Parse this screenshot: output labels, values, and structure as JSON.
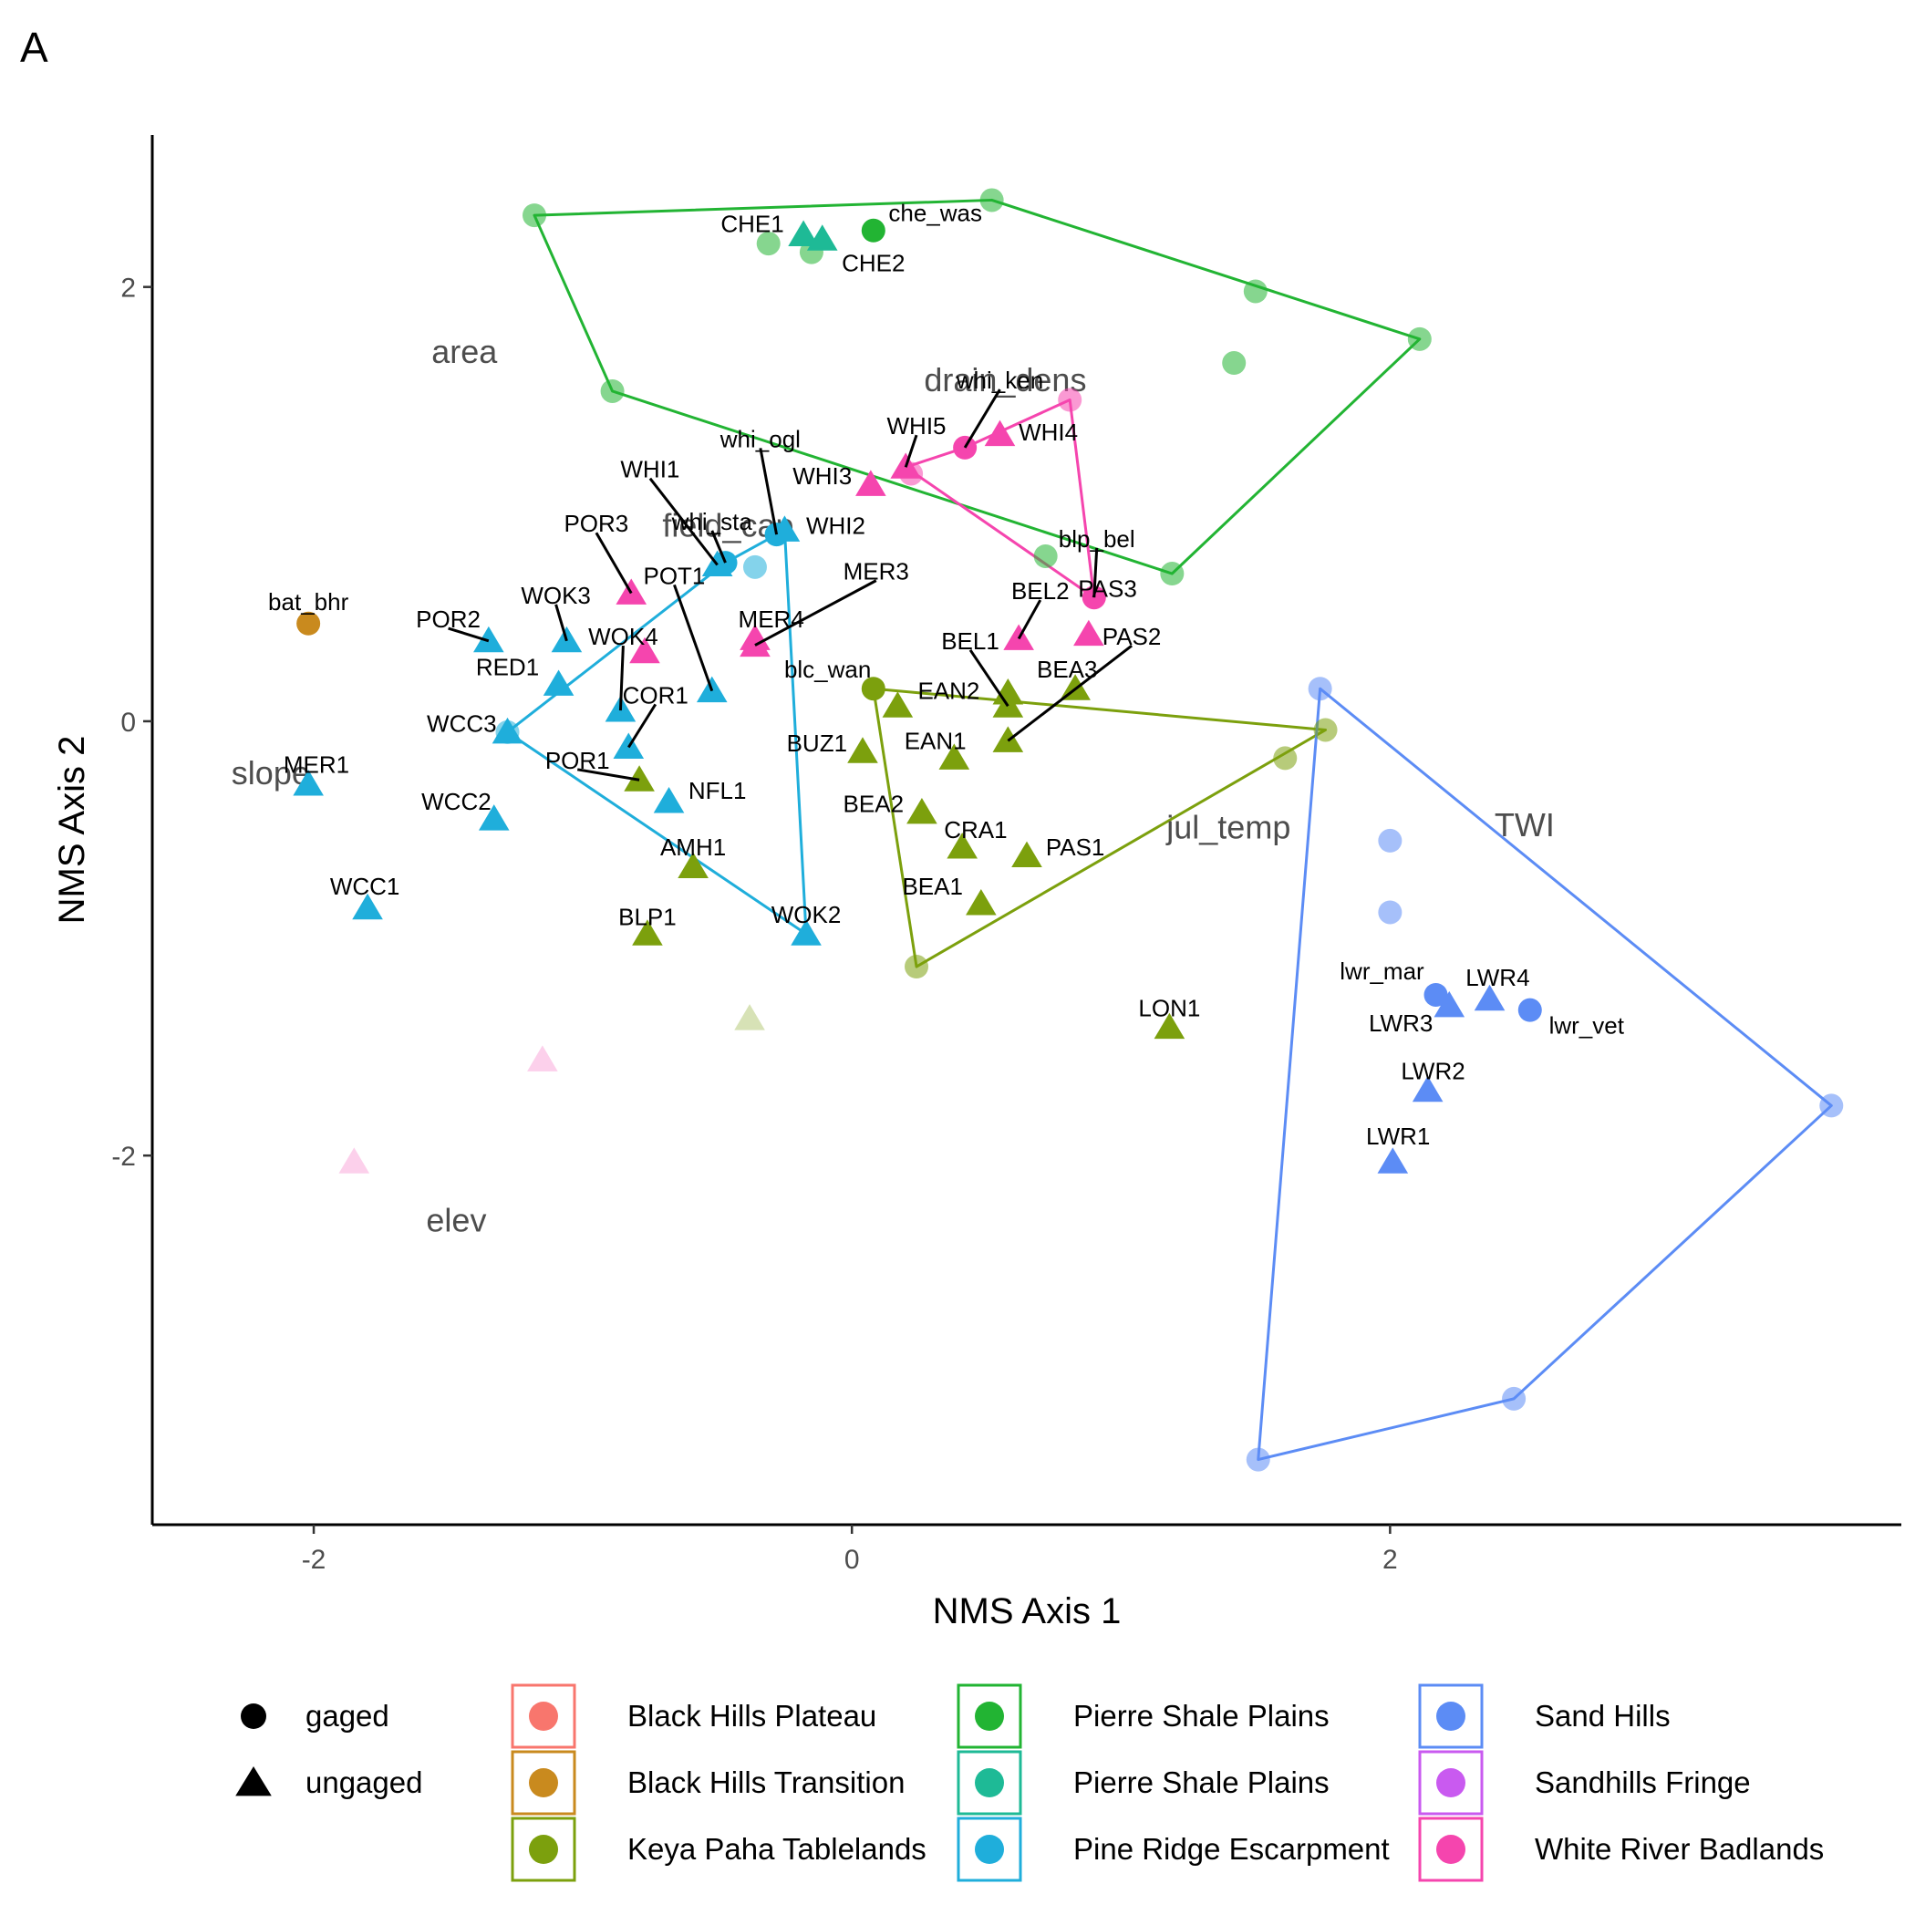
{
  "panel_label": "A",
  "colors": {
    "Black Hills Plateau": "#F8766D",
    "Black Hills Transition": "#C98A1E",
    "Keya Paha Tablelands": "#7CA00D",
    "Pierre Shale Plains 1": "#22B433",
    "Pierre Shale Plains 2": "#1EBA96",
    "Pine Ridge Escarpment": "#1FAEDB",
    "Sand Hills": "#5C8CF5",
    "Sandhills Fringe": "#C95AF0",
    "White River Badlands": "#F545AE"
  },
  "chart_data": {
    "type": "scatter",
    "title": "",
    "xlabel": "NMS Axis 1",
    "ylabel": "NMS Axis 2",
    "xlim": [
      -2.6,
      3.9
    ],
    "ylim": [
      -3.7,
      2.7
    ],
    "xticks": [
      -2,
      0,
      2
    ],
    "yticks": [
      -2,
      0,
      2
    ],
    "shapes": {
      "gaged": "circle",
      "ungaged": "triangle"
    },
    "vectors": [
      {
        "label": "area",
        "x": -1.44,
        "y": 1.7
      },
      {
        "label": "drain_dens",
        "x": 0.57,
        "y": 1.57
      },
      {
        "label": "field_cap",
        "x": -0.46,
        "y": 0.9
      },
      {
        "label": "slope",
        "x": -2.16,
        "y": -0.24
      },
      {
        "label": "elev",
        "x": -1.47,
        "y": -2.3
      },
      {
        "label": "jul_temp",
        "x": 1.4,
        "y": -0.49
      },
      {
        "label": "TWI",
        "x": 2.5,
        "y": -0.48
      }
    ],
    "points": [
      {
        "x": -2.02,
        "y": 0.45,
        "label": "bat_bhr",
        "group": "Black Hills Transition",
        "type": "gaged",
        "alpha": 1,
        "lx": -2.02,
        "ly": 0.55
      },
      {
        "x": -1.18,
        "y": 2.33,
        "label": "",
        "group": "Pierre Shale Plains 1",
        "type": "gaged",
        "alpha": 0.55
      },
      {
        "x": 0.52,
        "y": 2.4,
        "label": "",
        "group": "Pierre Shale Plains 1",
        "type": "gaged",
        "alpha": 0.55
      },
      {
        "x": -0.31,
        "y": 2.2,
        "label": "",
        "group": "Pierre Shale Plains 1",
        "type": "gaged",
        "alpha": 0.55
      },
      {
        "x": -0.15,
        "y": 2.16,
        "label": "",
        "group": "Pierre Shale Plains 1",
        "type": "gaged",
        "alpha": 0.55
      },
      {
        "x": 0.08,
        "y": 2.26,
        "label": "che_was",
        "group": "Pierre Shale Plains 1",
        "type": "gaged",
        "alpha": 1,
        "lx": 0.31,
        "ly": 2.34
      },
      {
        "x": 1.5,
        "y": 1.98,
        "label": "",
        "group": "Pierre Shale Plains 1",
        "type": "gaged",
        "alpha": 0.55
      },
      {
        "x": 2.11,
        "y": 1.76,
        "label": "",
        "group": "Pierre Shale Plains 1",
        "type": "gaged",
        "alpha": 0.55
      },
      {
        "x": 1.42,
        "y": 1.65,
        "label": "",
        "group": "Pierre Shale Plains 1",
        "type": "gaged",
        "alpha": 0.55
      },
      {
        "x": -0.89,
        "y": 1.52,
        "label": "",
        "group": "Pierre Shale Plains 1",
        "type": "gaged",
        "alpha": 0.55
      },
      {
        "x": 0.72,
        "y": 0.76,
        "label": "",
        "group": "Pierre Shale Plains 1",
        "type": "gaged",
        "alpha": 0.55
      },
      {
        "x": 1.19,
        "y": 0.68,
        "label": "",
        "group": "Pierre Shale Plains 1",
        "type": "gaged",
        "alpha": 0.55
      },
      {
        "x": -0.18,
        "y": 2.24,
        "label": "CHE1",
        "group": "Pierre Shale Plains 2",
        "type": "ungaged",
        "alpha": 1,
        "lx": -0.37,
        "ly": 2.29
      },
      {
        "x": -0.11,
        "y": 2.22,
        "label": "CHE2",
        "group": "Pierre Shale Plains 2",
        "type": "ungaged",
        "alpha": 1,
        "lx": 0.08,
        "ly": 2.11
      },
      {
        "x": 0.81,
        "y": 1.48,
        "label": "",
        "group": "White River Badlands",
        "type": "gaged",
        "alpha": 0.55
      },
      {
        "x": 0.42,
        "y": 1.26,
        "label": "whi_ken",
        "group": "White River Badlands",
        "type": "gaged",
        "alpha": 1,
        "lx": 0.55,
        "ly": 1.57,
        "line": true
      },
      {
        "x": 0.22,
        "y": 1.14,
        "label": "",
        "group": "White River Badlands",
        "type": "gaged",
        "alpha": 0.55
      },
      {
        "x": 0.9,
        "y": 0.57,
        "label": "blp_bel",
        "group": "White River Badlands",
        "type": "gaged",
        "alpha": 1,
        "lx": 0.91,
        "ly": 0.84,
        "line": true
      },
      {
        "x": 0.55,
        "y": 1.32,
        "label": "WHI4",
        "group": "White River Badlands",
        "type": "ungaged",
        "alpha": 1,
        "lx": 0.73,
        "ly": 1.33
      },
      {
        "x": 0.2,
        "y": 1.17,
        "label": "WHI5",
        "group": "White River Badlands",
        "type": "ungaged",
        "alpha": 1,
        "lx": 0.24,
        "ly": 1.36,
        "line": true
      },
      {
        "x": 0.07,
        "y": 1.09,
        "label": "WHI3",
        "group": "White River Badlands",
        "type": "ungaged",
        "alpha": 1,
        "lx": -0.11,
        "ly": 1.13
      },
      {
        "x": -0.82,
        "y": 0.59,
        "label": "POR3",
        "group": "White River Badlands",
        "type": "ungaged",
        "alpha": 1,
        "lx": -0.95,
        "ly": 0.91,
        "line": true
      },
      {
        "x": -0.77,
        "y": 0.32,
        "label": "",
        "group": "White River Badlands",
        "type": "ungaged",
        "alpha": 1
      },
      {
        "x": -0.36,
        "y": 0.38,
        "label": "MER4",
        "group": "White River Badlands",
        "type": "ungaged",
        "alpha": 1,
        "lx": -0.3,
        "ly": 0.47
      },
      {
        "x": -0.36,
        "y": 0.35,
        "label": "MER3",
        "group": "White River Badlands",
        "type": "ungaged",
        "alpha": 1,
        "lx": 0.09,
        "ly": 0.69,
        "line": true
      },
      {
        "x": 0.62,
        "y": 0.38,
        "label": "BEL2",
        "group": "White River Badlands",
        "type": "ungaged",
        "alpha": 1,
        "lx": 0.7,
        "ly": 0.6,
        "line": true
      },
      {
        "x": 0.88,
        "y": 0.4,
        "label": "PAS3",
        "group": "White River Badlands",
        "type": "ungaged",
        "alpha": 1,
        "lx": 0.95,
        "ly": 0.61
      },
      {
        "x": -1.85,
        "y": -2.03,
        "label": "",
        "group": "White River Badlands",
        "type": "ungaged",
        "alpha": 0.25
      },
      {
        "x": -1.15,
        "y": -1.56,
        "label": "",
        "group": "White River Badlands",
        "type": "ungaged",
        "alpha": 0.25
      },
      {
        "x": -0.28,
        "y": 0.86,
        "label": "whi_ogl",
        "group": "Pine Ridge Escarpment",
        "type": "gaged",
        "alpha": 1,
        "lx": -0.34,
        "ly": 1.3,
        "line": true
      },
      {
        "x": -0.47,
        "y": 0.73,
        "label": "whi_sta",
        "group": "Pine Ridge Escarpment",
        "type": "gaged",
        "alpha": 1,
        "lx": -0.52,
        "ly": 0.92,
        "line": true
      },
      {
        "x": -0.36,
        "y": 0.71,
        "label": "",
        "group": "Pine Ridge Escarpment",
        "type": "gaged",
        "alpha": 0.55
      },
      {
        "x": -1.28,
        "y": -0.05,
        "label": "",
        "group": "Pine Ridge Escarpment",
        "type": "gaged",
        "alpha": 0.55
      },
      {
        "x": -0.25,
        "y": 0.88,
        "label": "WHI2",
        "group": "Pine Ridge Escarpment",
        "type": "ungaged",
        "alpha": 1,
        "lx": -0.06,
        "ly": 0.9
      },
      {
        "x": -0.5,
        "y": 0.72,
        "label": "WHI1",
        "group": "Pine Ridge Escarpment",
        "type": "ungaged",
        "alpha": 1,
        "lx": -0.75,
        "ly": 1.16,
        "line": true
      },
      {
        "x": -1.06,
        "y": 0.37,
        "label": "WOK3",
        "group": "Pine Ridge Escarpment",
        "type": "ungaged",
        "alpha": 1,
        "lx": -1.1,
        "ly": 0.58,
        "line": true
      },
      {
        "x": -1.09,
        "y": 0.17,
        "label": "RED1",
        "group": "Pine Ridge Escarpment",
        "type": "ungaged",
        "alpha": 1,
        "lx": -1.28,
        "ly": 0.25
      },
      {
        "x": -0.86,
        "y": 0.05,
        "label": "WOK4",
        "group": "Pine Ridge Escarpment",
        "type": "ungaged",
        "alpha": 1,
        "lx": -0.85,
        "ly": 0.39,
        "line": true
      },
      {
        "x": -1.35,
        "y": 0.37,
        "label": "POR2",
        "group": "Pine Ridge Escarpment",
        "type": "ungaged",
        "alpha": 1,
        "lx": -1.5,
        "ly": 0.47,
        "line": true
      },
      {
        "x": -0.52,
        "y": 0.14,
        "label": "POT1",
        "group": "Pine Ridge Escarpment",
        "type": "ungaged",
        "alpha": 1,
        "lx": -0.66,
        "ly": 0.67,
        "line": true
      },
      {
        "x": -1.28,
        "y": -0.05,
        "label": "WCC3",
        "group": "Pine Ridge Escarpment",
        "type": "ungaged",
        "alpha": 1,
        "lx": -1.45,
        "ly": -0.01
      },
      {
        "x": -0.83,
        "y": -0.12,
        "label": "COR1",
        "group": "Pine Ridge Escarpment",
        "type": "ungaged",
        "alpha": 1,
        "lx": -0.73,
        "ly": 0.12,
        "line": true
      },
      {
        "x": -2.02,
        "y": -0.29,
        "label": "MER1",
        "group": "Pine Ridge Escarpment",
        "type": "ungaged",
        "alpha": 1,
        "lx": -1.99,
        "ly": -0.2
      },
      {
        "x": -0.68,
        "y": -0.37,
        "label": "NFL1",
        "group": "Pine Ridge Escarpment",
        "type": "ungaged",
        "alpha": 1,
        "lx": -0.5,
        "ly": -0.32
      },
      {
        "x": -1.33,
        "y": -0.45,
        "label": "WCC2",
        "group": "Pine Ridge Escarpment",
        "type": "ungaged",
        "alpha": 1,
        "lx": -1.47,
        "ly": -0.37
      },
      {
        "x": -1.8,
        "y": -0.86,
        "label": "WCC1",
        "group": "Pine Ridge Escarpment",
        "type": "ungaged",
        "alpha": 1,
        "lx": -1.81,
        "ly": -0.76
      },
      {
        "x": -0.17,
        "y": -0.98,
        "label": "WOK2",
        "group": "Pine Ridge Escarpment",
        "type": "ungaged",
        "alpha": 1,
        "lx": -0.17,
        "ly": -0.89
      },
      {
        "x": 0.08,
        "y": 0.15,
        "label": "blc_wan",
        "group": "Keya Paha Tablelands",
        "type": "gaged",
        "alpha": 1,
        "lx": -0.09,
        "ly": 0.24
      },
      {
        "x": 1.76,
        "y": -0.04,
        "label": "",
        "group": "Keya Paha Tablelands",
        "type": "gaged",
        "alpha": 0.55
      },
      {
        "x": 1.61,
        "y": -0.17,
        "label": "",
        "group": "Keya Paha Tablelands",
        "type": "gaged",
        "alpha": 0.55
      },
      {
        "x": 0.24,
        "y": -1.13,
        "label": "",
        "group": "Keya Paha Tablelands",
        "type": "gaged",
        "alpha": 0.55
      },
      {
        "x": 0.17,
        "y": 0.07,
        "label": "",
        "group": "Keya Paha Tablelands",
        "type": "ungaged",
        "alpha": 1
      },
      {
        "x": 0.58,
        "y": 0.13,
        "label": "EAN2",
        "group": "Keya Paha Tablelands",
        "type": "ungaged",
        "alpha": 1,
        "lx": 0.36,
        "ly": 0.14
      },
      {
        "x": 0.83,
        "y": 0.15,
        "label": "BEA3",
        "group": "Keya Paha Tablelands",
        "type": "ungaged",
        "alpha": 1,
        "lx": 0.8,
        "ly": 0.24
      },
      {
        "x": 0.58,
        "y": -0.09,
        "label": "PAS2",
        "group": "Keya Paha Tablelands",
        "type": "ungaged",
        "alpha": 1,
        "lx": 1.04,
        "ly": 0.39,
        "line": true
      },
      {
        "x": 0.58,
        "y": 0.07,
        "label": "BEL1",
        "group": "Keya Paha Tablelands",
        "type": "ungaged",
        "alpha": 1,
        "lx": 0.44,
        "ly": 0.37,
        "line": true
      },
      {
        "x": 0.04,
        "y": -0.14,
        "label": "BUZ1",
        "group": "Keya Paha Tablelands",
        "type": "ungaged",
        "alpha": 1,
        "lx": -0.13,
        "ly": -0.1
      },
      {
        "x": 0.38,
        "y": -0.17,
        "label": "EAN1",
        "group": "Keya Paha Tablelands",
        "type": "ungaged",
        "alpha": 1,
        "lx": 0.31,
        "ly": -0.09
      },
      {
        "x": -0.79,
        "y": -0.27,
        "label": "POR1",
        "group": "Keya Paha Tablelands",
        "type": "ungaged",
        "alpha": 1,
        "lx": -1.02,
        "ly": -0.18,
        "line": true
      },
      {
        "x": 0.26,
        "y": -0.42,
        "label": "BEA2",
        "group": "Keya Paha Tablelands",
        "type": "ungaged",
        "alpha": 1,
        "lx": 0.08,
        "ly": -0.38
      },
      {
        "x": 0.41,
        "y": -0.58,
        "label": "CRA1",
        "group": "Keya Paha Tablelands",
        "type": "ungaged",
        "alpha": 1,
        "lx": 0.46,
        "ly": -0.5
      },
      {
        "x": 0.65,
        "y": -0.62,
        "label": "PAS1",
        "group": "Keya Paha Tablelands",
        "type": "ungaged",
        "alpha": 1,
        "lx": 0.83,
        "ly": -0.58
      },
      {
        "x": -0.59,
        "y": -0.67,
        "label": "AMH1",
        "group": "Keya Paha Tablelands",
        "type": "ungaged",
        "alpha": 1,
        "lx": -0.59,
        "ly": -0.58
      },
      {
        "x": 0.48,
        "y": -0.84,
        "label": "BEA1",
        "group": "Keya Paha Tablelands",
        "type": "ungaged",
        "alpha": 1,
        "lx": 0.3,
        "ly": -0.76
      },
      {
        "x": -0.76,
        "y": -0.98,
        "label": "BLP1",
        "group": "Keya Paha Tablelands",
        "type": "ungaged",
        "alpha": 1,
        "lx": -0.76,
        "ly": -0.9
      },
      {
        "x": 1.18,
        "y": -1.41,
        "label": "LON1",
        "group": "Keya Paha Tablelands",
        "type": "ungaged",
        "alpha": 1,
        "lx": 1.18,
        "ly": -1.32
      },
      {
        "x": -0.38,
        "y": -1.37,
        "label": "",
        "group": "Keya Paha Tablelands",
        "type": "ungaged",
        "alpha": 0.3
      },
      {
        "x": 1.74,
        "y": 0.15,
        "label": "",
        "group": "Sand Hills",
        "type": "gaged",
        "alpha": 0.55
      },
      {
        "x": 2.0,
        "y": -0.55,
        "label": "",
        "group": "Sand Hills",
        "type": "gaged",
        "alpha": 0.55
      },
      {
        "x": 2.0,
        "y": -0.88,
        "label": "",
        "group": "Sand Hills",
        "type": "gaged",
        "alpha": 0.55
      },
      {
        "x": 2.17,
        "y": -1.26,
        "label": "lwr_mar",
        "group": "Sand Hills",
        "type": "gaged",
        "alpha": 1,
        "lx": 1.97,
        "ly": -1.15
      },
      {
        "x": 2.52,
        "y": -1.33,
        "label": "lwr_vet",
        "group": "Sand Hills",
        "type": "gaged",
        "alpha": 1,
        "lx": 2.73,
        "ly": -1.4
      },
      {
        "x": 3.64,
        "y": -1.77,
        "label": "",
        "group": "Sand Hills",
        "type": "gaged",
        "alpha": 0.55
      },
      {
        "x": 2.46,
        "y": -3.12,
        "label": "",
        "group": "Sand Hills",
        "type": "gaged",
        "alpha": 0.55
      },
      {
        "x": 1.51,
        "y": -3.4,
        "label": "",
        "group": "Sand Hills",
        "type": "gaged",
        "alpha": 0.55
      },
      {
        "x": 2.37,
        "y": -1.28,
        "label": "LWR4",
        "group": "Sand Hills",
        "type": "ungaged",
        "alpha": 1,
        "lx": 2.4,
        "ly": -1.18
      },
      {
        "x": 2.22,
        "y": -1.31,
        "label": "LWR3",
        "group": "Sand Hills",
        "type": "ungaged",
        "alpha": 1,
        "lx": 2.04,
        "ly": -1.39
      },
      {
        "x": 2.14,
        "y": -1.7,
        "label": "LWR2",
        "group": "Sand Hills",
        "type": "ungaged",
        "alpha": 1,
        "lx": 2.16,
        "ly": -1.61
      },
      {
        "x": 2.01,
        "y": -2.03,
        "label": "LWR1",
        "group": "Sand Hills",
        "type": "ungaged",
        "alpha": 1,
        "lx": 2.03,
        "ly": -1.91
      }
    ],
    "hulls": [
      {
        "group": "Pierre Shale Plains 1",
        "points": [
          [
            -1.18,
            2.33
          ],
          [
            0.52,
            2.4
          ],
          [
            2.11,
            1.76
          ],
          [
            1.19,
            0.68
          ],
          [
            -0.89,
            1.52
          ]
        ]
      },
      {
        "group": "White River Badlands",
        "points": [
          [
            0.2,
            1.17
          ],
          [
            0.42,
            1.26
          ],
          [
            0.81,
            1.48
          ],
          [
            0.9,
            0.57
          ]
        ]
      },
      {
        "group": "Pine Ridge Escarpment",
        "points": [
          [
            -0.25,
            0.88
          ],
          [
            -0.17,
            -0.98
          ],
          [
            -1.28,
            -0.05
          ],
          [
            -0.47,
            0.73
          ]
        ]
      },
      {
        "group": "Keya Paha Tablelands",
        "points": [
          [
            0.08,
            0.15
          ],
          [
            1.76,
            -0.04
          ],
          [
            0.24,
            -1.13
          ]
        ]
      },
      {
        "group": "Sand Hills",
        "points": [
          [
            1.74,
            0.15
          ],
          [
            3.64,
            -1.77
          ],
          [
            2.46,
            -3.12
          ],
          [
            1.51,
            -3.4
          ]
        ]
      }
    ],
    "legend": {
      "placement": "bottom",
      "shape_entries": [
        {
          "label": "gaged",
          "shape": "circle"
        },
        {
          "label": "ungaged",
          "shape": "triangle"
        }
      ],
      "group_entries": [
        {
          "label": "Black Hills Plateau",
          "color_key": "Black Hills Plateau"
        },
        {
          "label": "Black Hills Transition",
          "color_key": "Black Hills Transition"
        },
        {
          "label": "Keya Paha Tablelands",
          "color_key": "Keya Paha Tablelands"
        },
        {
          "label": "Pierre Shale Plains",
          "color_key": "Pierre Shale Plains 1"
        },
        {
          "label": "Pierre Shale Plains",
          "color_key": "Pierre Shale Plains 2"
        },
        {
          "label": "Pine Ridge Escarpment",
          "color_key": "Pine Ridge Escarpment"
        },
        {
          "label": "Sand Hills",
          "color_key": "Sand Hills"
        },
        {
          "label": "Sandhills Fringe",
          "color_key": "Sandhills Fringe"
        },
        {
          "label": "White River Badlands",
          "color_key": "White River Badlands"
        }
      ]
    }
  }
}
